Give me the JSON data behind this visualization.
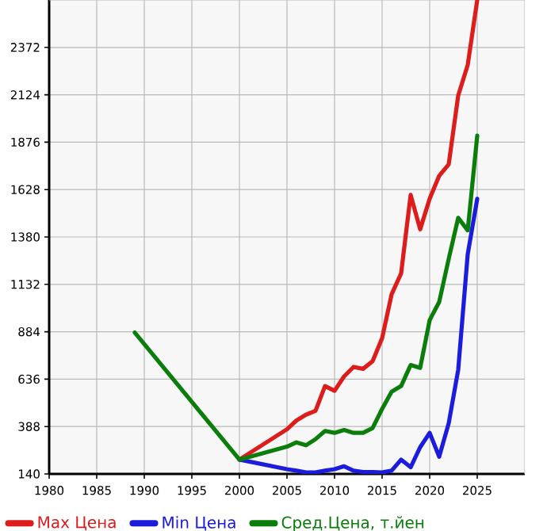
{
  "chart_data": {
    "type": "line",
    "xlim": [
      1980,
      2030
    ],
    "xticks": [
      1980,
      1985,
      1990,
      1995,
      2000,
      2005,
      2010,
      2015,
      2020,
      2025
    ],
    "ylim": [
      140,
      2620
    ],
    "yticks": [
      140,
      388,
      636,
      884,
      1132,
      1380,
      1628,
      1876,
      2124,
      2372
    ],
    "grid": true,
    "legend": "bottom",
    "line_style": "solid",
    "marker": "none",
    "series": [
      {
        "name": "Max Цена",
        "color": "#dd1c1c",
        "x": [
          2000,
          2005,
          2006,
          2007,
          2008,
          2009,
          2010,
          2011,
          2012,
          2013,
          2014,
          2015,
          2016,
          2017,
          2018,
          2019,
          2020,
          2021,
          2022,
          2023,
          2024,
          2025
        ],
        "values": [
          215,
          374,
          420,
          450,
          470,
          600,
          575,
          650,
          700,
          690,
          730,
          850,
          1080,
          1190,
          1600,
          1420,
          1580,
          1700,
          1760,
          2120,
          2280,
          2620
        ]
      },
      {
        "name": "Min Цена",
        "color": "#1c1cdd",
        "x": [
          2000,
          2005,
          2006,
          2007,
          2008,
          2009,
          2010,
          2011,
          2012,
          2013,
          2014,
          2015,
          2016,
          2017,
          2018,
          2019,
          2020,
          2021,
          2022,
          2023,
          2024,
          2025
        ],
        "values": [
          215,
          165,
          157,
          148,
          148,
          157,
          165,
          180,
          157,
          150,
          150,
          148,
          157,
          215,
          175,
          280,
          355,
          230,
          405,
          685,
          1290,
          1580
        ]
      },
      {
        "name": "Сред.Цена, т.йен",
        "color": "#0a7d0a",
        "x": [
          1989,
          2000,
          2005,
          2006,
          2007,
          2008,
          2009,
          2010,
          2011,
          2012,
          2013,
          2014,
          2015,
          2016,
          2017,
          2018,
          2019,
          2020,
          2021,
          2022,
          2023,
          2024,
          2025
        ],
        "values": [
          880,
          215,
          283,
          305,
          290,
          322,
          365,
          355,
          370,
          355,
          355,
          380,
          480,
          570,
          600,
          710,
          695,
          945,
          1040,
          1265,
          1480,
          1415,
          1910
        ]
      }
    ]
  }
}
